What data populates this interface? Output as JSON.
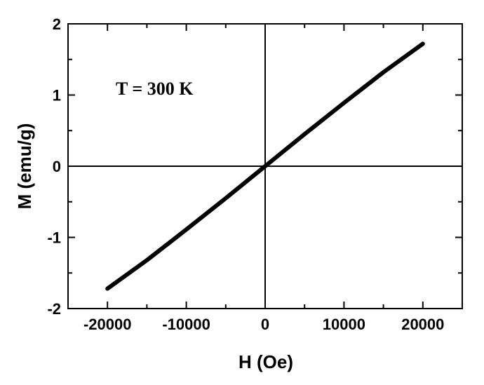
{
  "chart_data": {
    "type": "line",
    "title": "",
    "xlabel": "H (Oe)",
    "ylabel": "M (emu/g)",
    "xlim": [
      -25000,
      25000
    ],
    "ylim": [
      -2,
      2
    ],
    "xticks": [
      -20000,
      -10000,
      0,
      10000,
      20000
    ],
    "xtick_labels": [
      "-20000",
      "-10000",
      "0",
      "10000",
      "20000"
    ],
    "yticks": [
      -2,
      -1,
      0,
      1,
      2
    ],
    "ytick_labels": [
      "-2",
      "-1",
      "0",
      "1",
      "2"
    ],
    "grid": false,
    "annotation": "T = 300 K",
    "series": [
      {
        "color": "#000000",
        "x": [
          -20000,
          -15000,
          -10000,
          -5000,
          0,
          5000,
          10000,
          15000,
          20000
        ],
        "y": [
          -1.72,
          -1.32,
          -0.89,
          -0.45,
          0.0,
          0.45,
          0.89,
          1.32,
          1.72
        ]
      }
    ]
  }
}
